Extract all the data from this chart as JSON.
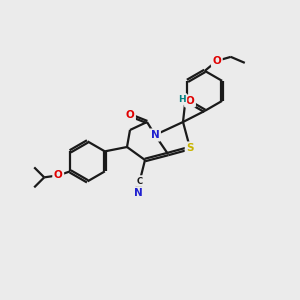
{
  "bg_color": "#ebebeb",
  "bond_color": "#1a1a1a",
  "atom_colors": {
    "N": "#2020d0",
    "O": "#e00000",
    "S": "#c8b400",
    "C": "#1a1a1a",
    "H": "#008080"
  },
  "figsize": [
    3.0,
    3.0
  ],
  "dpi": 100
}
